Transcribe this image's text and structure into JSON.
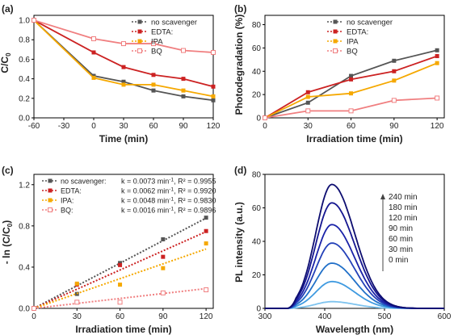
{
  "chart_data": [
    {
      "panel": "(a)",
      "type": "line",
      "ylabel": "C/C",
      "ylabel_sub": "0",
      "xlabel": "Time (min)",
      "xlim": [
        -60,
        120
      ],
      "ylim": [
        0,
        1.05
      ],
      "xticks": [
        -60,
        -30,
        0,
        30,
        60,
        90,
        120
      ],
      "yticks": [
        0.0,
        0.2,
        0.4,
        0.6,
        0.8,
        1.0
      ],
      "ytick_labels": [
        "0.0",
        "0.2",
        "0.4",
        "0.6",
        "0.8",
        "1.0"
      ],
      "legend_position": "top-right",
      "series": [
        {
          "name": "no scavenger",
          "color": "#555555",
          "marker": "square",
          "x": [
            -60,
            0,
            30,
            60,
            90,
            120
          ],
          "y": [
            1.0,
            0.43,
            0.37,
            0.28,
            0.22,
            0.18
          ]
        },
        {
          "name": "EDTA:",
          "color": "#cc2222",
          "marker": "square",
          "x": [
            -60,
            0,
            30,
            60,
            90,
            120
          ],
          "y": [
            1.0,
            0.67,
            0.52,
            0.44,
            0.4,
            0.32
          ]
        },
        {
          "name": "IPA",
          "color": "#f5a800",
          "marker": "square",
          "x": [
            -60,
            0,
            30,
            60,
            90,
            120
          ],
          "y": [
            1.0,
            0.41,
            0.34,
            0.34,
            0.28,
            0.22
          ]
        },
        {
          "name": "BQ",
          "color": "#f07f80",
          "marker": "square-open",
          "x": [
            -60,
            0,
            30,
            60,
            90,
            120
          ],
          "y": [
            1.0,
            0.81,
            0.76,
            0.76,
            0.69,
            0.67
          ]
        }
      ]
    },
    {
      "panel": "(b)",
      "type": "line",
      "ylabel": "Photodegradation (%)",
      "xlabel": "Irradiation time (min)",
      "xlim": [
        0,
        125
      ],
      "ylim": [
        0,
        88
      ],
      "xticks": [
        0,
        30,
        60,
        90,
        120
      ],
      "yticks": [
        0,
        20,
        40,
        60,
        80
      ],
      "ytick_labels": [
        "0",
        "20",
        "40",
        "60",
        "80"
      ],
      "legend_position": "top-left",
      "series": [
        {
          "name": "no scavenger",
          "color": "#555555",
          "marker": "square",
          "x": [
            0,
            30,
            60,
            90,
            120
          ],
          "y": [
            0,
            13,
            36,
            49,
            58
          ]
        },
        {
          "name": "EDTA:",
          "color": "#cc2222",
          "marker": "square",
          "x": [
            0,
            30,
            60,
            90,
            120
          ],
          "y": [
            0,
            22,
            33,
            40,
            53
          ]
        },
        {
          "name": "IPA",
          "color": "#f5a800",
          "marker": "square",
          "x": [
            0,
            30,
            60,
            90,
            120
          ],
          "y": [
            0,
            18,
            21,
            32,
            47
          ]
        },
        {
          "name": "BQ",
          "color": "#f07f80",
          "marker": "square-open",
          "x": [
            0,
            30,
            60,
            90,
            120
          ],
          "y": [
            0,
            6,
            6,
            15,
            17
          ]
        }
      ]
    },
    {
      "panel": "(c)",
      "type": "scatter",
      "ylabel": "- ln (C/C",
      "ylabel_sub": "0",
      "ylabel_end": ")",
      "xlabel": "Irradiation time (min)",
      "xlim": [
        0,
        125
      ],
      "ylim": [
        0,
        1.3
      ],
      "xticks": [
        0,
        30,
        60,
        90,
        120
      ],
      "yticks": [
        0.0,
        0.4,
        0.8,
        1.2
      ],
      "ytick_labels": [
        "0.0",
        "0.4",
        "0.8",
        "1.2"
      ],
      "legend_position": "top-left",
      "series": [
        {
          "name": "no scavenger:",
          "k_text": "k = 0.0073 min",
          "k_sup": "-1",
          "r2_text": ", R² = 0.9955",
          "slope": 0.0073,
          "color": "#555555",
          "marker": "square",
          "x": [
            0,
            30,
            60,
            90,
            120
          ],
          "y": [
            0,
            0.14,
            0.44,
            0.67,
            0.88
          ]
        },
        {
          "name": "EDTA:",
          "k_text": "k = 0.0062 min",
          "k_sup": "-1",
          "r2_text": ", R² = 0.9920",
          "slope": 0.0062,
          "color": "#cc2222",
          "marker": "square",
          "x": [
            0,
            30,
            60,
            90,
            120
          ],
          "y": [
            0,
            0.23,
            0.42,
            0.5,
            0.75
          ]
        },
        {
          "name": "IPA:",
          "k_text": "k = 0.0048 min",
          "k_sup": "-1",
          "r2_text": ", R² = 0.9830",
          "slope": 0.0048,
          "color": "#f5a800",
          "marker": "square",
          "x": [
            0,
            30,
            60,
            90,
            120
          ],
          "y": [
            0,
            0.24,
            0.23,
            0.39,
            0.63
          ]
        },
        {
          "name": "BQ:",
          "k_text": "k = 0.0016 min",
          "k_sup": "-1",
          "r2_text": ", R² = 0.9896",
          "slope": 0.0016,
          "color": "#f07f80",
          "marker": "square-open",
          "x": [
            0,
            30,
            60,
            90,
            120
          ],
          "y": [
            0,
            0.06,
            0.06,
            0.15,
            0.18
          ]
        }
      ]
    },
    {
      "panel": "(d)",
      "type": "line",
      "ylabel": "PL intensity (a.u.)",
      "xlabel": "Wavelength (nm)",
      "xlim": [
        300,
        600
      ],
      "ylim": [
        0,
        80
      ],
      "xticks": [
        300,
        400,
        500,
        600
      ],
      "yticks": [
        0,
        20,
        40,
        60,
        80
      ],
      "ytick_labels": [
        "0",
        "20",
        "40",
        "60",
        "80"
      ],
      "peak_wavelength": 412,
      "legend_position": "top-right",
      "legend_order": [
        "240 min",
        "180 min",
        "120 min",
        "90 min",
        "60 min",
        "30 min",
        "0 min"
      ],
      "series": [
        {
          "name": "0 min",
          "peak": 4,
          "color": "#7ec3ee"
        },
        {
          "name": "30 min",
          "peak": 16,
          "color": "#3f9ae0"
        },
        {
          "name": "60 min",
          "peak": 27,
          "color": "#2170c8"
        },
        {
          "name": "90 min",
          "peak": 39,
          "color": "#2340b8"
        },
        {
          "name": "120 min",
          "peak": 50,
          "color": "#1a22a8"
        },
        {
          "name": "180 min",
          "peak": 63,
          "color": "#151690"
        },
        {
          "name": "240 min",
          "peak": 74,
          "color": "#0d0d70"
        }
      ]
    }
  ]
}
